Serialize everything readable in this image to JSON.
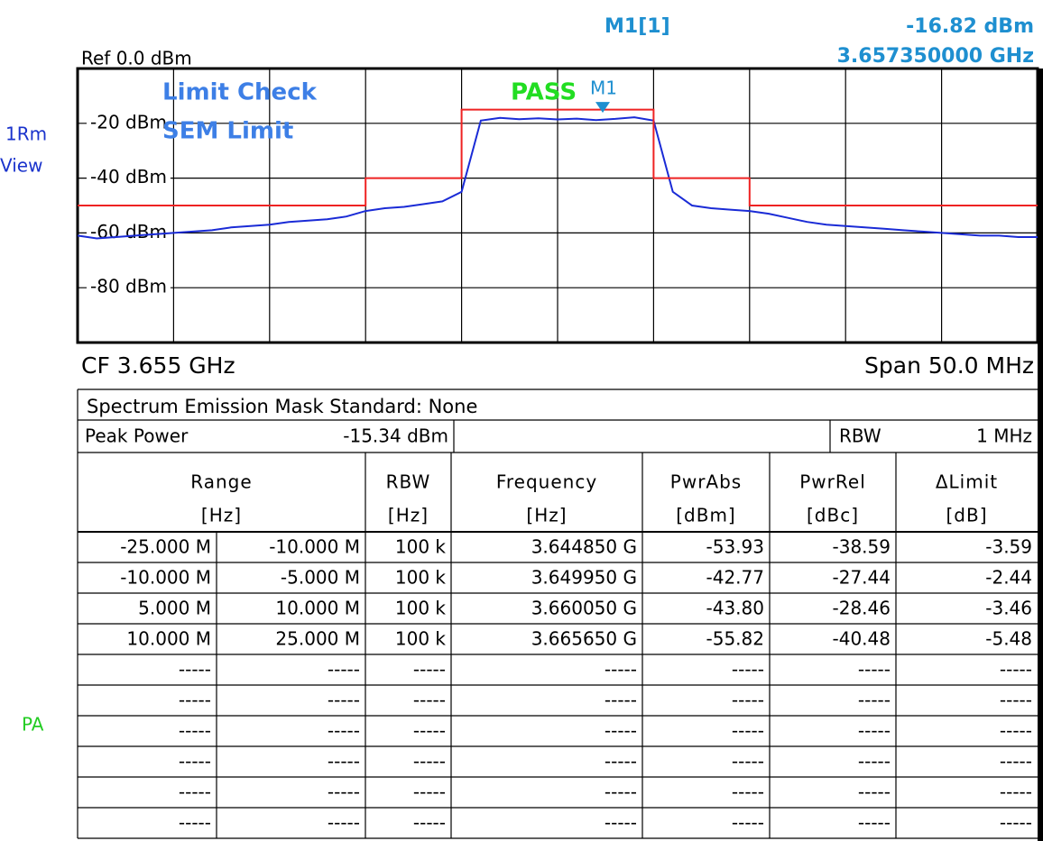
{
  "header": {
    "marker_name": "M1[1]",
    "marker_level": "-16.82 dBm",
    "marker_freq": "3.657350000 GHz",
    "ref": "Ref  0.0 dBm"
  },
  "side": {
    "trace_label": "1Rm",
    "view": "View",
    "pa": "PA"
  },
  "chart_data": {
    "type": "line",
    "overlay": {
      "limit_check": "Limit Check",
      "result": "PASS",
      "limit_name": "SEM Limit"
    },
    "xlim": [
      3.63,
      3.68
    ],
    "ylim": [
      -100,
      0
    ],
    "yticks": [
      {
        "value": -20,
        "label": "-20 dBm"
      },
      {
        "value": -40,
        "label": "-40 dBm"
      },
      {
        "value": -60,
        "label": "-60 dBm"
      },
      {
        "value": -80,
        "label": "-80 dBm"
      }
    ],
    "grid": true,
    "series": [
      {
        "name": "Trace 1",
        "color": "#1a2bd6",
        "x": [
          3.63,
          3.631,
          3.632,
          3.633,
          3.634,
          3.635,
          3.636,
          3.637,
          3.638,
          3.639,
          3.64,
          3.641,
          3.642,
          3.643,
          3.644,
          3.645,
          3.646,
          3.647,
          3.648,
          3.649,
          3.65,
          3.651,
          3.652,
          3.653,
          3.654,
          3.655,
          3.656,
          3.657,
          3.658,
          3.659,
          3.66,
          3.661,
          3.662,
          3.663,
          3.664,
          3.665,
          3.666,
          3.667,
          3.668,
          3.669,
          3.67,
          3.671,
          3.672,
          3.673,
          3.674,
          3.675,
          3.676,
          3.677,
          3.678,
          3.679,
          3.68
        ],
        "values": [
          -61,
          -62,
          -61.5,
          -61,
          -60.5,
          -60,
          -59.5,
          -59,
          -58,
          -57.5,
          -57,
          -56,
          -55.5,
          -55,
          -54,
          -52,
          -51,
          -50.5,
          -49.5,
          -48.5,
          -45,
          -19,
          -18,
          -18.5,
          -18.2,
          -18.6,
          -18.3,
          -18.8,
          -18.4,
          -17.8,
          -19,
          -45,
          -50,
          -51,
          -51.5,
          -52,
          -53,
          -54.5,
          -56,
          -57,
          -57.5,
          -58,
          -58.5,
          -59,
          -59.5,
          -60,
          -60.5,
          -61,
          -61,
          -61.5,
          -61.5
        ]
      },
      {
        "name": "SEM Limit",
        "color": "#ee2222",
        "x": [
          3.63,
          3.645,
          3.645,
          3.65,
          3.65,
          3.66,
          3.66,
          3.665,
          3.665,
          3.68
        ],
        "values": [
          -50,
          -50,
          -40,
          -40,
          -15,
          -15,
          -40,
          -40,
          -50,
          -50
        ]
      }
    ],
    "marker": {
      "label": "M1",
      "x": 3.65735,
      "y": -16.82
    },
    "footer": {
      "cf": "CF 3.655 GHz",
      "span": "Span 50.0 MHz"
    }
  },
  "table": {
    "title": "Spectrum Emission Mask Standard: None",
    "summary": [
      "Peak Power",
      "-15.34 dBm",
      "RBW",
      "1 MHz"
    ],
    "headers": [
      [
        "Range",
        "[Hz]"
      ],
      [
        "RBW",
        "[Hz]"
      ],
      [
        "Frequency",
        "[Hz]"
      ],
      [
        "PwrAbs",
        "[dBm]"
      ],
      [
        "PwrRel",
        "[dBc]"
      ],
      [
        "ΔLimit",
        "[dB]"
      ]
    ],
    "rows": [
      [
        "-25.000 M",
        "-10.000 M",
        "100 k",
        "3.644850 G",
        "-53.93",
        "-38.59",
        "-3.59"
      ],
      [
        "-10.000 M",
        "-5.000 M",
        "100 k",
        "3.649950 G",
        "-42.77",
        "-27.44",
        "-2.44"
      ],
      [
        "5.000 M",
        "10.000 M",
        "100 k",
        "3.660050 G",
        "-43.80",
        "-28.46",
        "-3.46"
      ],
      [
        "10.000 M",
        "25.000 M",
        "100 k",
        "3.665650 G",
        "-55.82",
        "-40.48",
        "-5.48"
      ],
      [
        "-----",
        "-----",
        "-----",
        "-----",
        "-----",
        "-----",
        "-----"
      ],
      [
        "-----",
        "-----",
        "-----",
        "-----",
        "-----",
        "-----",
        "-----"
      ],
      [
        "-----",
        "-----",
        "-----",
        "-----",
        "-----",
        "-----",
        "-----"
      ],
      [
        "-----",
        "-----",
        "-----",
        "-----",
        "-----",
        "-----",
        "-----"
      ],
      [
        "-----",
        "-----",
        "-----",
        "-----",
        "-----",
        "-----",
        "-----"
      ],
      [
        "-----",
        "-----",
        "-----",
        "-----",
        "-----",
        "-----",
        "-----"
      ]
    ]
  }
}
